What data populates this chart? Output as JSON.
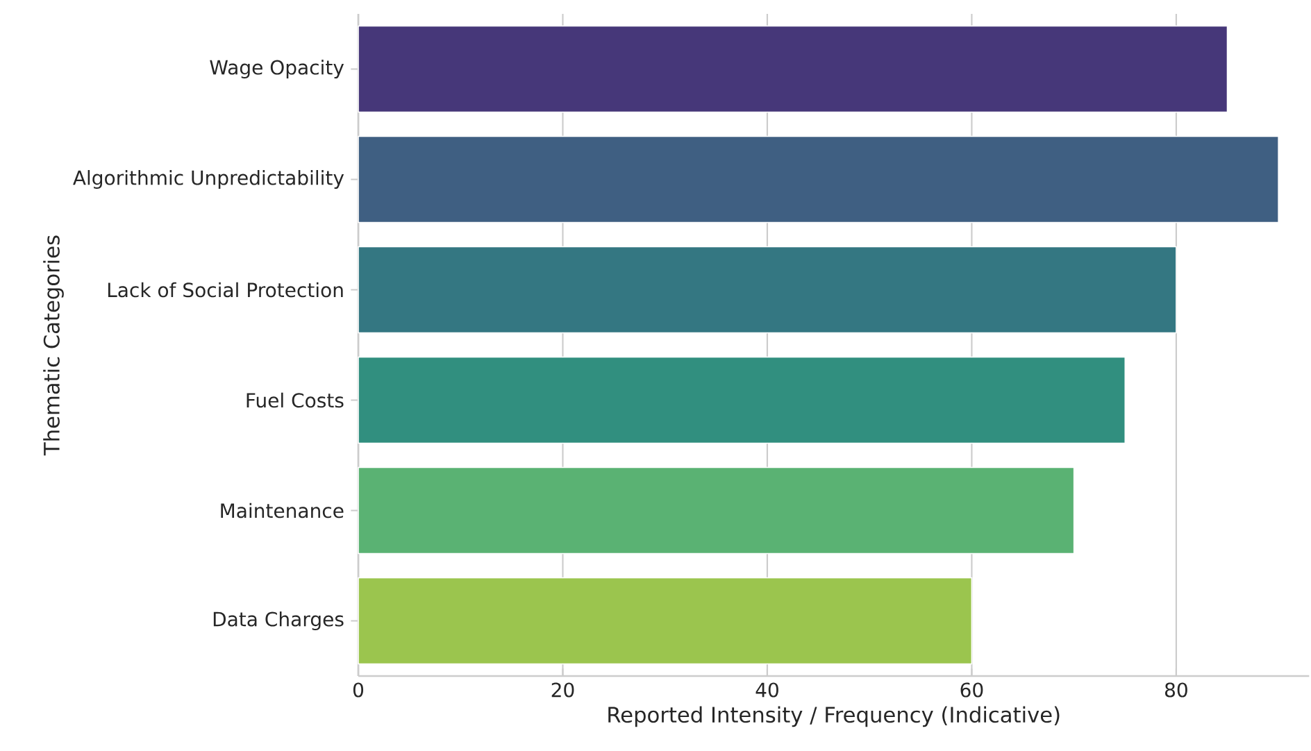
{
  "chart_data": {
    "type": "bar",
    "orientation": "horizontal",
    "xlabel": "Reported Intensity / Frequency (Indicative)",
    "ylabel": "Thematic Categories",
    "categories": [
      "Wage Opacity",
      "Algorithmic Unpredictability",
      "Lack of Social Protection",
      "Fuel Costs",
      "Maintenance",
      "Data Charges"
    ],
    "values": [
      85,
      90,
      80,
      75,
      70,
      60
    ],
    "colors": [
      "#463779",
      "#3f5f82",
      "#347782",
      "#318f7f",
      "#5ab273",
      "#9bc54e"
    ],
    "xlim": [
      0,
      93
    ],
    "xticks": [
      0,
      20,
      40,
      60,
      80
    ],
    "grid": "x"
  }
}
